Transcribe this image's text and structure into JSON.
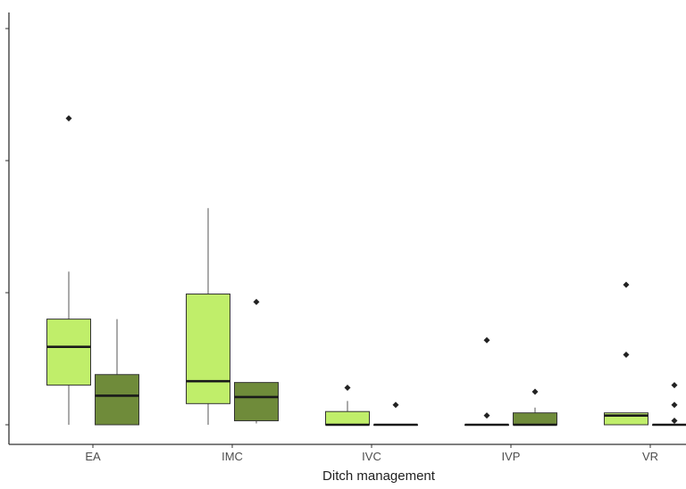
{
  "chart_data": {
    "type": "boxplot",
    "title": "",
    "xlabel": "Ditch management",
    "ylabel": "",
    "categories": [
      "EA",
      "IMC",
      "IVC",
      "IVP",
      "VR"
    ],
    "y_ticks_note_hidden": [
      0,
      1,
      2,
      3
    ],
    "ylim": [
      -0.15,
      3.05
    ],
    "grid": false,
    "colors": {
      "light": "#c0ee6a",
      "dark": "#6f8b3a",
      "outline": "#333333",
      "median": "#1a1a1a"
    },
    "series": [
      {
        "color_key": "light",
        "boxes": [
          {
            "low": 0,
            "q1": 0.3,
            "median": 0.59,
            "q3": 0.8,
            "high": 1.16,
            "outliers": [
              2.32
            ]
          },
          {
            "low": 0,
            "q1": 0.16,
            "median": 0.33,
            "q3": 0.99,
            "high": 1.64,
            "outliers": []
          },
          {
            "low": 0,
            "q1": 0,
            "median": 0,
            "q3": 0.1,
            "high": 0.18,
            "outliers": [
              0.28
            ]
          },
          {
            "low": 0,
            "q1": 0,
            "median": 0,
            "q3": 0,
            "high": 0,
            "outliers": [
              0.64,
              0.07
            ]
          },
          {
            "low": 0,
            "q1": 0,
            "median": 0.07,
            "q3": 0.09,
            "high": 0.09,
            "outliers": [
              1.06,
              0.53
            ]
          }
        ]
      },
      {
        "color_key": "dark",
        "boxes": [
          {
            "low": 0,
            "q1": 0,
            "median": 0.22,
            "q3": 0.38,
            "high": 0.8,
            "outliers": []
          },
          {
            "low": 0.01,
            "q1": 0.03,
            "median": 0.21,
            "q3": 0.32,
            "high": 0.32,
            "outliers": [
              0.93
            ]
          },
          {
            "low": 0,
            "q1": 0,
            "median": 0,
            "q3": 0,
            "high": 0,
            "outliers": [
              0.15
            ]
          },
          {
            "low": 0,
            "q1": 0,
            "median": 0,
            "q3": 0.09,
            "high": 0.13,
            "outliers": [
              0.25
            ]
          },
          {
            "low": 0,
            "q1": 0,
            "median": 0,
            "q3": 0,
            "high": 0,
            "outliers": [
              0.3,
              0.15,
              0.03
            ]
          }
        ]
      }
    ]
  }
}
